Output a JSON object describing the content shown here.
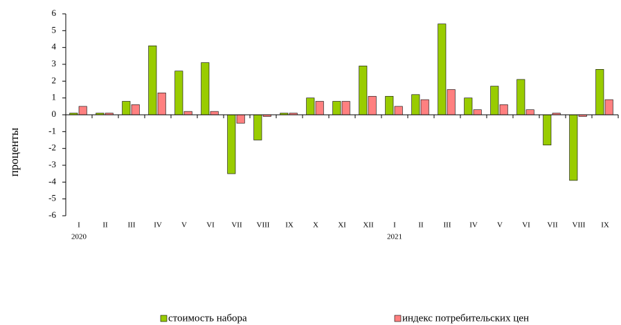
{
  "chart_data": {
    "type": "bar",
    "y_label": "проценты",
    "categories": [
      "I",
      "II",
      "III",
      "IV",
      "V",
      "VI",
      "VII",
      "VIII",
      "IX",
      "X",
      "XI",
      "XII",
      "I",
      "II",
      "III",
      "IV",
      "V",
      "VI",
      "VII",
      "VIII",
      "IX"
    ],
    "year_labels": [
      {
        "category": 0,
        "label": "2020"
      },
      {
        "category": 12,
        "label": "2021"
      }
    ],
    "series": [
      {
        "name": "стоимость набора",
        "color": "#99cc00",
        "values": [
          0.1,
          0.1,
          0.8,
          4.1,
          2.6,
          3.1,
          -3.5,
          -1.5,
          0.1,
          1.0,
          0.8,
          2.9,
          1.1,
          1.2,
          5.4,
          1.0,
          1.7,
          2.1,
          -1.8,
          -3.9,
          2.7
        ]
      },
      {
        "name": "индекс потребительских цен",
        "color": "#ff8080",
        "values": [
          0.5,
          0.1,
          0.6,
          1.3,
          0.2,
          0.2,
          -0.5,
          -0.1,
          0.1,
          0.8,
          0.8,
          1.1,
          0.5,
          0.9,
          1.5,
          0.3,
          0.6,
          0.3,
          0.1,
          -0.1,
          0.9
        ]
      }
    ],
    "ylim": [
      -6,
      6
    ],
    "yticks": [
      -6,
      -5,
      -4,
      -3,
      -2,
      -1,
      0,
      1,
      2,
      3,
      4,
      5,
      6
    ],
    "grid": false
  }
}
